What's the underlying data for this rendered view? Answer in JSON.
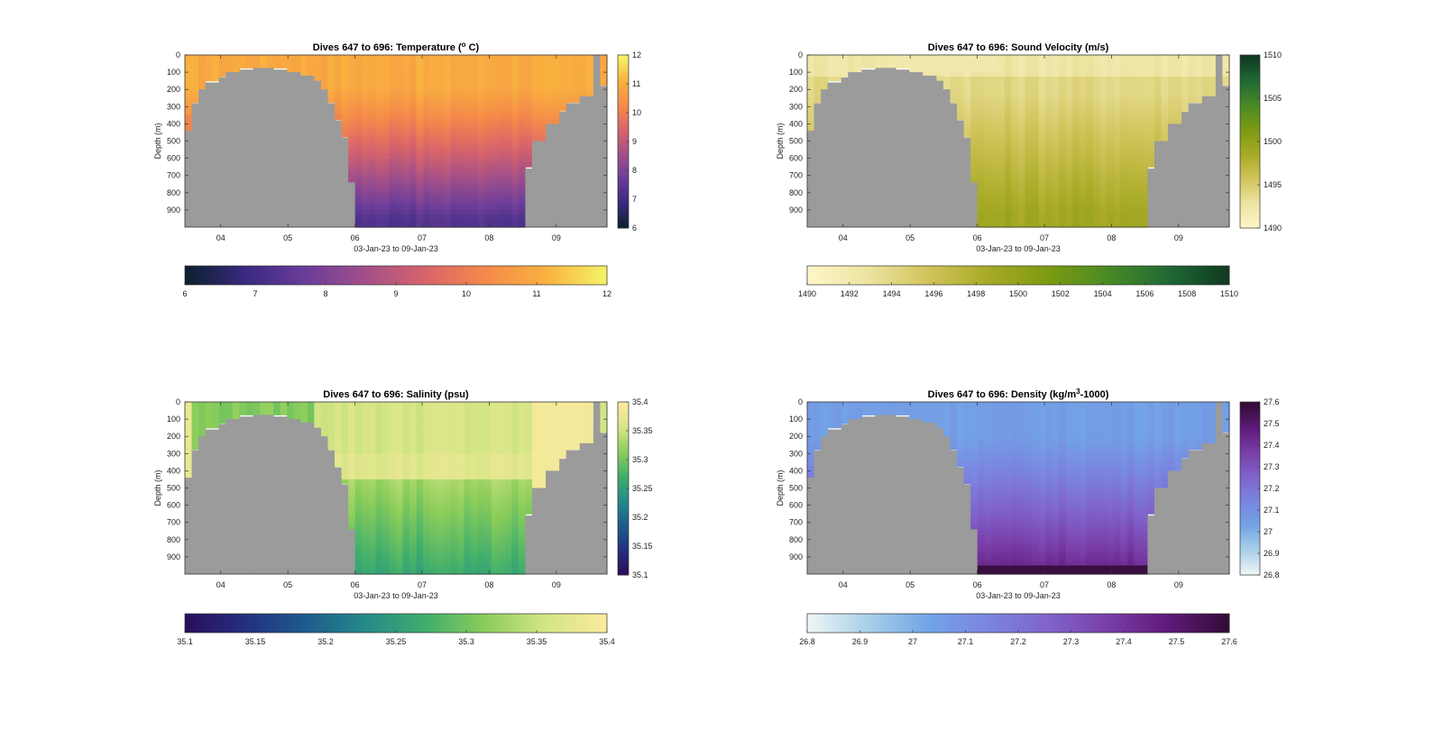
{
  "chart_data": [
    {
      "type": "heatmap",
      "title": "Dives 647 to 696: Temperature (° C)",
      "title_parts": {
        "pre": "Dives 647 to 696: Temperature (",
        "sup": "o",
        "post": " C)"
      },
      "xlabel": "03-Jan-23 to 09-Jan-23",
      "ylabel": "Depth (m)",
      "x_ticks": [
        "04",
        "05",
        "06",
        "07",
        "08",
        "09"
      ],
      "y_ticks": [
        0,
        100,
        200,
        300,
        400,
        500,
        600,
        700,
        800,
        900
      ],
      "ylim": [
        0,
        1000
      ],
      "xlim": [
        "03-Jan-23",
        "09-Jan-23"
      ],
      "colorbar_range": [
        6,
        12
      ],
      "colorbar_ticks_side": [
        "6",
        "7",
        "8",
        "9",
        "10",
        "11",
        "12"
      ],
      "colorbar_ticks_bottom": [
        "6",
        "7",
        "8",
        "9",
        "10",
        "11",
        "12"
      ],
      "colormap": [
        "#0d2030",
        "#3a2a80",
        "#6b3d9a",
        "#a34f8a",
        "#d8646a",
        "#f48a4a",
        "#f9b13f",
        "#f4f267"
      ],
      "field": {
        "surface": 11.0,
        "deep": 7.3
      }
    },
    {
      "type": "heatmap",
      "title": "Dives 647 to 696: Sound Velocity (m/s)",
      "xlabel": "03-Jan-23 to 09-Jan-23",
      "ylabel": "Depth (m)",
      "x_ticks": [
        "04",
        "05",
        "06",
        "07",
        "08",
        "09"
      ],
      "y_ticks": [
        0,
        100,
        200,
        300,
        400,
        500,
        600,
        700,
        800,
        900
      ],
      "ylim": [
        0,
        1000
      ],
      "xlim": [
        "03-Jan-23",
        "09-Jan-23"
      ],
      "colorbar_range": [
        1490,
        1510
      ],
      "colorbar_ticks_side": [
        "1490",
        "1495",
        "1500",
        "1505",
        "1510"
      ],
      "colorbar_ticks_bottom": [
        "1490",
        "1492",
        "1494",
        "1496",
        "1498",
        "1500",
        "1502",
        "1504",
        "1506",
        "1508",
        "1510"
      ],
      "colormap": [
        "#fdf6c8",
        "#ece3a0",
        "#d0c45a",
        "#a8aa25",
        "#7d9a12",
        "#4a8a24",
        "#1f6a35",
        "#103a22"
      ],
      "field": {
        "surface": 1494.0,
        "deep": 1499.0
      }
    },
    {
      "type": "heatmap",
      "title": "Dives 647 to 696: Salinity (psu)",
      "xlabel": "03-Jan-23 to 09-Jan-23",
      "ylabel": "Depth (m)",
      "x_ticks": [
        "04",
        "05",
        "06",
        "07",
        "08",
        "09"
      ],
      "y_ticks": [
        0,
        100,
        200,
        300,
        400,
        500,
        600,
        700,
        800,
        900
      ],
      "ylim": [
        0,
        1000
      ],
      "xlim": [
        "03-Jan-23",
        "09-Jan-23"
      ],
      "colorbar_range": [
        35.1,
        35.4
      ],
      "colorbar_ticks_side": [
        "35.1",
        "35.15",
        "35.2",
        "35.25",
        "35.3",
        "35.35",
        "35.4"
      ],
      "colorbar_ticks_bottom": [
        "35.1",
        "35.15",
        "35.2",
        "35.25",
        "35.3",
        "35.35",
        "35.4"
      ],
      "colormap": [
        "#2a0f5c",
        "#24307f",
        "#1d5c8c",
        "#258a8a",
        "#3fae6c",
        "#8ccd5a",
        "#d4e585",
        "#fbeaa0"
      ],
      "field": {
        "surface": 35.33,
        "deep": 35.29
      }
    },
    {
      "type": "heatmap",
      "title": "Dives 647 to 696: Density (kg/m³-1000)",
      "title_parts": {
        "pre": "Dives 647 to 696: Density (kg/m",
        "sup": "3",
        "post": "-1000)"
      },
      "xlabel": "03-Jan-23 to 09-Jan-23",
      "ylabel": "Depth (m)",
      "x_ticks": [
        "04",
        "05",
        "06",
        "07",
        "08",
        "09"
      ],
      "y_ticks": [
        0,
        100,
        200,
        300,
        400,
        500,
        600,
        700,
        800,
        900
      ],
      "ylim": [
        0,
        1000
      ],
      "xlim": [
        "03-Jan-23",
        "09-Jan-23"
      ],
      "colorbar_range": [
        26.8,
        27.6
      ],
      "colorbar_ticks_side": [
        "26.8",
        "26.9",
        "27",
        "27.1",
        "27.2",
        "27.3",
        "27.4",
        "27.5",
        "27.6"
      ],
      "colorbar_ticks_bottom": [
        "26.8",
        "26.9",
        "27",
        "27.1",
        "27.2",
        "27.3",
        "27.4",
        "27.5",
        "27.6"
      ],
      "colormap": [
        "#eef5f5",
        "#a8cfe8",
        "#72a4e6",
        "#7a85e0",
        "#8063cc",
        "#7a3ea8",
        "#5e1a7a",
        "#340c36"
      ],
      "field": {
        "surface": 27.05,
        "deep": 27.45
      }
    }
  ]
}
